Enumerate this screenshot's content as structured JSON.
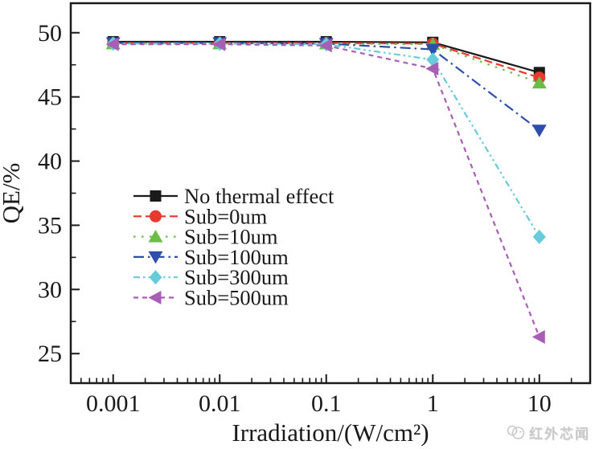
{
  "chart_data": {
    "type": "line",
    "title": "",
    "xlabel": "Irradiation/(W/cm²)",
    "ylabel": "QE/%",
    "x_scale": "log",
    "grid": false,
    "legend_position": "inside-center-left",
    "x": [
      0.001,
      0.01,
      0.1,
      1,
      10
    ],
    "x_ticks": [
      0.001,
      0.01,
      0.1,
      1,
      10
    ],
    "x_tick_labels": [
      "0.001",
      "0.01",
      "0.1",
      "1",
      "10"
    ],
    "xlim": [
      0.0004,
      30
    ],
    "y_ticks": [
      25,
      30,
      35,
      40,
      45,
      50
    ],
    "y_minor_step": 2.5,
    "ylim": [
      22.7,
      52.3
    ],
    "series": [
      {
        "name": "No thermal effect",
        "color": "#1a1a1a",
        "marker": "square",
        "line": "solid",
        "values": [
          49.3,
          49.3,
          49.3,
          49.25,
          46.9
        ]
      },
      {
        "name": "Sub=0um",
        "color": "#e8392e",
        "marker": "circle",
        "line": "dashed",
        "values": [
          49.2,
          49.2,
          49.2,
          49.15,
          46.5
        ]
      },
      {
        "name": "Sub=10um",
        "color": "#6abd45",
        "marker": "triangle-up",
        "line": "dotted",
        "values": [
          49.15,
          49.15,
          49.15,
          49.1,
          46.1
        ]
      },
      {
        "name": "Sub=100um",
        "color": "#2d4fa9",
        "marker": "triangle-down",
        "line": "dash-dot",
        "values": [
          49.2,
          49.2,
          49.15,
          48.7,
          42.4
        ]
      },
      {
        "name": "Sub=300um",
        "color": "#67cbd9",
        "marker": "diamond",
        "line": "dash-dot-dot",
        "values": [
          49.15,
          49.15,
          49.1,
          47.9,
          34.1
        ]
      },
      {
        "name": "Sub=500um",
        "color": "#a95eb5",
        "marker": "triangle-left",
        "line": "short-dash",
        "values": [
          49.1,
          49.1,
          49.0,
          47.2,
          26.3
        ]
      }
    ]
  },
  "watermark": {
    "text": "红外芯闻"
  }
}
